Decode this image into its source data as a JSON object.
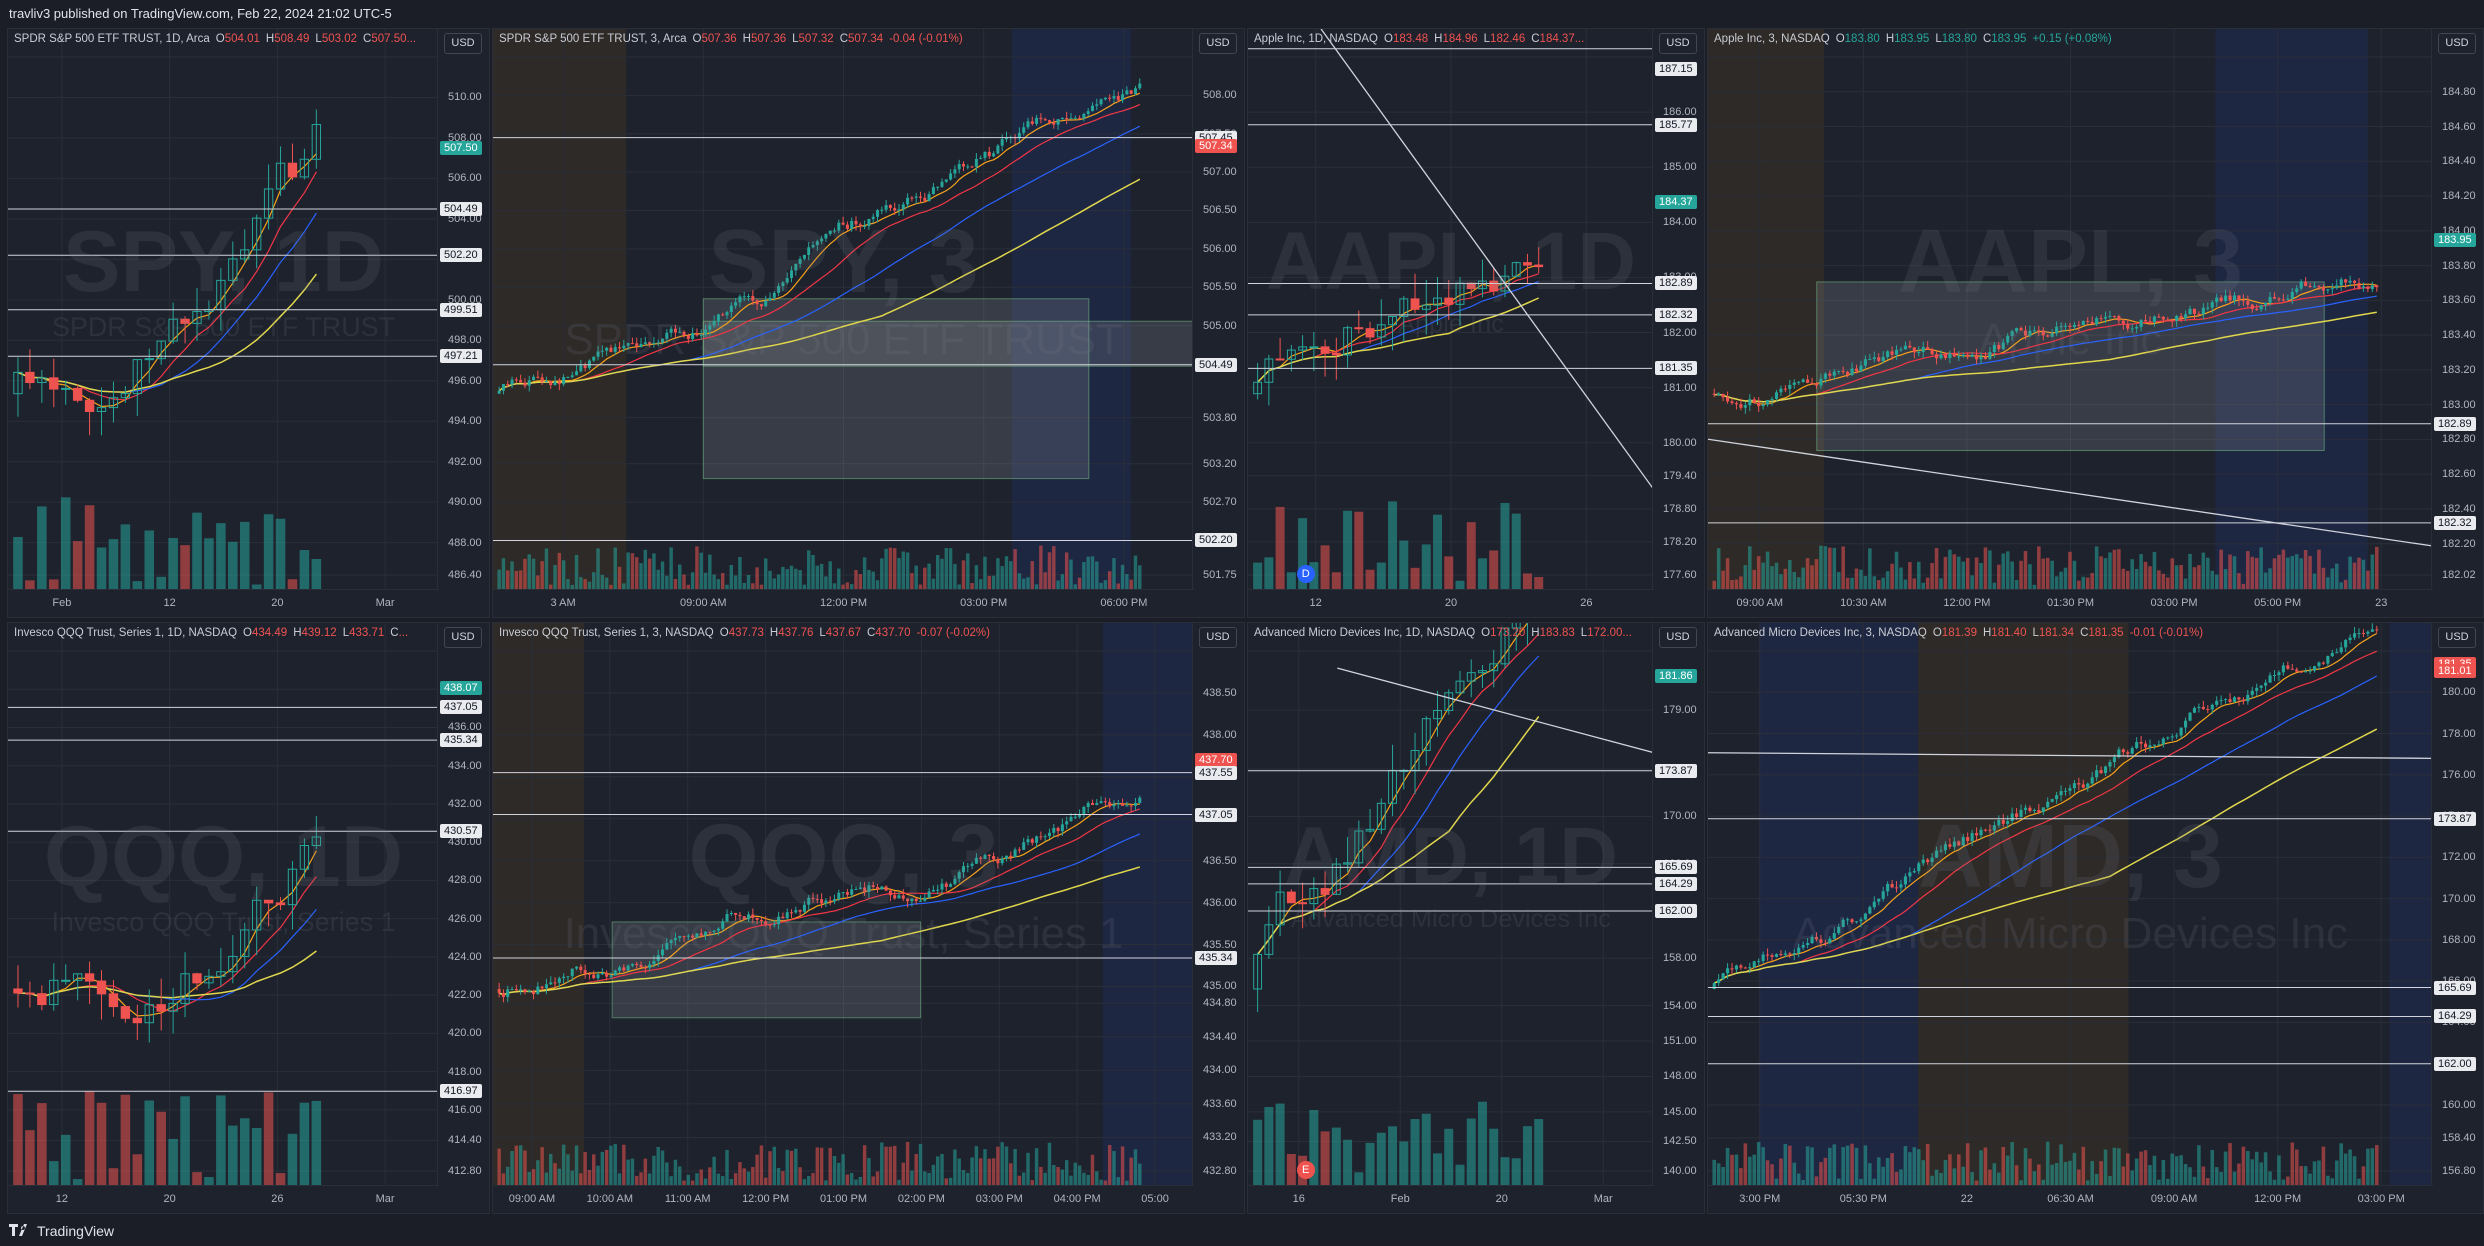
{
  "publish_line": "travliv3 published on TradingView.com, Feb 22, 2024 21:02 UTC-5",
  "footer": {
    "brand": "TradingView"
  },
  "currency_label": "USD",
  "colors": {
    "up": "#26a69a",
    "down": "#ef5350",
    "ema_red": "#f23645",
    "ema_orange": "#f7a21b",
    "ema_blue": "#2962ff",
    "vwap_yellow": "#e0d74c",
    "level_white": "#d1d4dc",
    "premarket": "#3a3128",
    "afterhours": "#1f2a4a"
  },
  "panes": [
    {
      "id": "spy-1d",
      "title": "SPDR S&P 500 ETF TRUST, 1D, Arca",
      "ohlc": [
        {
          "k": "O",
          "v": "504.01"
        },
        {
          "k": "H",
          "v": "508.49"
        },
        {
          "k": "L",
          "v": "503.02"
        },
        {
          "k": "C",
          "v": "507.50..."
        }
      ],
      "change": "",
      "watermark": "SPY, 1D",
      "watermark_sub": "SPDR S&P 500 ETF TRUST",
      "y_ticks": [
        "512.00",
        "510.00",
        "508.00",
        "506.00",
        "504.00",
        "502.00",
        "500.00",
        "498.00",
        "496.00",
        "494.00",
        "492.00",
        "490.00",
        "488.00",
        "486.40"
      ],
      "y_tags": [
        {
          "v": "507.50",
          "c": "green"
        },
        {
          "v": "504.49",
          "c": "white"
        },
        {
          "v": "502.20",
          "c": "white"
        },
        {
          "v": "499.51",
          "c": "white"
        },
        {
          "v": "497.21",
          "c": "white"
        }
      ],
      "x_ticks": [
        "Feb",
        "12",
        "20",
        "Mar"
      ]
    },
    {
      "id": "spy-3",
      "title": "SPDR S&P 500 ETF TRUST, 3, Arca",
      "ohlc": [
        {
          "k": "O",
          "v": "507.36"
        },
        {
          "k": "H",
          "v": "507.36"
        },
        {
          "k": "L",
          "v": "507.32"
        },
        {
          "k": "C",
          "v": "507.34"
        }
      ],
      "change": "-0.04 (-0.01%)",
      "watermark": "SPY, 3",
      "watermark_sub": "SPDR S&P 500 ETF TRUST",
      "y_ticks": [
        "508.50",
        "508.00",
        "507.50",
        "507.00",
        "506.50",
        "506.00",
        "505.50",
        "505.00",
        "504.50",
        "503.80",
        "503.20",
        "502.70",
        "502.20",
        "501.75"
      ],
      "y_tags": [
        {
          "v": "507.45",
          "c": "white"
        },
        {
          "v": "507.34",
          "c": "red"
        },
        {
          "v": "504.49",
          "c": "white"
        },
        {
          "v": "502.20",
          "c": "white"
        }
      ],
      "x_ticks": [
        "3 AM",
        "09:00 AM",
        "12:00 PM",
        "03:00 PM",
        "06:00 PM"
      ]
    },
    {
      "id": "aapl-1d",
      "title": "Apple Inc, 1D, NASDAQ",
      "ohlc": [
        {
          "k": "O",
          "v": "183.48"
        },
        {
          "k": "H",
          "v": "184.96"
        },
        {
          "k": "L",
          "v": "182.46"
        },
        {
          "k": "C",
          "v": "184.37..."
        }
      ],
      "change": "",
      "watermark": "AAPL, 1D",
      "watermark_sub": "Apple Inc",
      "y_ticks": [
        "187.00",
        "186.00",
        "185.00",
        "184.00",
        "183.00",
        "182.00",
        "181.00",
        "180.00",
        "179.40",
        "178.80",
        "178.20",
        "177.60"
      ],
      "y_tags": [
        {
          "v": "187.15",
          "c": "white"
        },
        {
          "v": "185.77",
          "c": "white"
        },
        {
          "v": "184.37",
          "c": "green"
        },
        {
          "v": "182.89",
          "c": "white"
        },
        {
          "v": "182.32",
          "c": "white"
        },
        {
          "v": "181.35",
          "c": "white"
        }
      ],
      "x_ticks": [
        "12",
        "20",
        "26"
      ]
    },
    {
      "id": "aapl-3",
      "title": "Apple Inc, 3, NASDAQ",
      "ohlc": [
        {
          "k": "O",
          "v": "183.80"
        },
        {
          "k": "H",
          "v": "183.95"
        },
        {
          "k": "L",
          "v": "183.80"
        },
        {
          "k": "C",
          "v": "183.95"
        }
      ],
      "change": "+0.15 (+0.08%)",
      "watermark": "AAPL, 3",
      "watermark_sub": "Apple Inc",
      "y_ticks": [
        "185.00",
        "184.80",
        "184.60",
        "184.40",
        "184.20",
        "184.00",
        "183.80",
        "183.60",
        "183.40",
        "183.20",
        "183.00",
        "182.80",
        "182.60",
        "182.40",
        "182.20",
        "182.02"
      ],
      "y_tags": [
        {
          "v": "183.95",
          "c": "green"
        },
        {
          "v": "182.89",
          "c": "white"
        },
        {
          "v": "182.32",
          "c": "white"
        }
      ],
      "x_ticks": [
        "09:00 AM",
        "10:30 AM",
        "12:00 PM",
        "01:30 PM",
        "03:00 PM",
        "05:00 PM",
        "23"
      ]
    },
    {
      "id": "qqq-1d",
      "title": "Invesco QQQ Trust, Series 1, 1D, NASDAQ",
      "ohlc": [
        {
          "k": "O",
          "v": "434.49"
        },
        {
          "k": "H",
          "v": "439.12"
        },
        {
          "k": "L",
          "v": "433.71"
        },
        {
          "k": "C",
          "v": "..."
        }
      ],
      "change": "",
      "watermark": "QQQ, 1D",
      "watermark_sub": "Invesco QQQ Trust, Series 1",
      "y_ticks": [
        "440.00",
        "438.00",
        "436.00",
        "434.00",
        "432.00",
        "430.00",
        "428.00",
        "426.00",
        "424.00",
        "422.00",
        "420.00",
        "418.00",
        "416.00",
        "414.40",
        "412.80"
      ],
      "y_tags": [
        {
          "v": "438.07",
          "c": "green"
        },
        {
          "v": "437.05",
          "c": "white"
        },
        {
          "v": "435.34",
          "c": "white"
        },
        {
          "v": "430.57",
          "c": "white"
        },
        {
          "v": "416.97",
          "c": "white"
        }
      ],
      "x_ticks": [
        "12",
        "20",
        "26",
        "Mar"
      ]
    },
    {
      "id": "qqq-3",
      "title": "Invesco QQQ Trust, Series 1, 3, NASDAQ",
      "ohlc": [
        {
          "k": "O",
          "v": "437.73"
        },
        {
          "k": "H",
          "v": "437.76"
        },
        {
          "k": "L",
          "v": "437.67"
        },
        {
          "k": "C",
          "v": "437.70"
        }
      ],
      "change": "-0.07 (-0.02%)",
      "watermark": "QQQ, 3",
      "watermark_sub": "Invesco QQQ Trust, Series 1",
      "y_ticks": [
        "439.00",
        "438.50",
        "438.00",
        "437.50",
        "437.00",
        "436.50",
        "436.00",
        "435.50",
        "435.00",
        "434.80",
        "434.40",
        "434.00",
        "433.60",
        "433.20",
        "432.80"
      ],
      "y_tags": [
        {
          "v": "437.70",
          "c": "red"
        },
        {
          "v": "437.55",
          "c": "white"
        },
        {
          "v": "437.05",
          "c": "white"
        },
        {
          "v": "435.34",
          "c": "white"
        }
      ],
      "x_ticks": [
        "09:00 AM",
        "10:00 AM",
        "11:00 AM",
        "12:00 PM",
        "01:00 PM",
        "02:00 PM",
        "03:00 PM",
        "04:00 PM",
        "05:00"
      ]
    },
    {
      "id": "amd-1d",
      "title": "Advanced Micro Devices Inc, 1D, NASDAQ",
      "ohlc": [
        {
          "k": "O",
          "v": "173.20"
        },
        {
          "k": "H",
          "v": "183.83"
        },
        {
          "k": "L",
          "v": "172.00..."
        }
      ],
      "change": "",
      "watermark": "AMD, 1D",
      "watermark_sub": "Advanced Micro Devices Inc",
      "y_ticks": [
        "184.00",
        "179.00",
        "174.00",
        "170.00",
        "166.00",
        "162.00",
        "158.00",
        "154.00",
        "151.00",
        "148.00",
        "145.00",
        "142.50",
        "140.00"
      ],
      "y_tags": [
        {
          "v": "181.86",
          "c": "green"
        },
        {
          "v": "173.87",
          "c": "white"
        },
        {
          "v": "165.69",
          "c": "white"
        },
        {
          "v": "164.29",
          "c": "white"
        },
        {
          "v": "162.00",
          "c": "white"
        }
      ],
      "x_ticks": [
        "16",
        "Feb",
        "20",
        "Mar"
      ]
    },
    {
      "id": "amd-3",
      "title": "Advanced Micro Devices Inc, 3, NASDAQ",
      "ohlc": [
        {
          "k": "O",
          "v": "181.39"
        },
        {
          "k": "H",
          "v": "181.40"
        },
        {
          "k": "L",
          "v": "181.34"
        },
        {
          "k": "C",
          "v": "181.35"
        }
      ],
      "change": "-0.01 (-0.01%)",
      "watermark": "AMD, 3",
      "watermark_sub": "Advanced Micro Devices Inc",
      "y_ticks": [
        "182.00",
        "180.00",
        "178.00",
        "176.00",
        "174.00",
        "172.00",
        "170.00",
        "168.00",
        "166.00",
        "164.00",
        "162.00",
        "160.00",
        "158.40",
        "156.80"
      ],
      "y_tags": [
        {
          "v": "181.35",
          "c": "red"
        },
        {
          "v": "181.01",
          "c": "red"
        },
        {
          "v": "173.87",
          "c": "white"
        },
        {
          "v": "165.69",
          "c": "white"
        },
        {
          "v": "164.29",
          "c": "white"
        },
        {
          "v": "162.00",
          "c": "white"
        }
      ],
      "x_ticks": [
        "3:00 PM",
        "05:30 PM",
        "22",
        "06:30 AM",
        "09:00 AM",
        "12:00 PM",
        "03:00 PM"
      ]
    }
  ]
}
